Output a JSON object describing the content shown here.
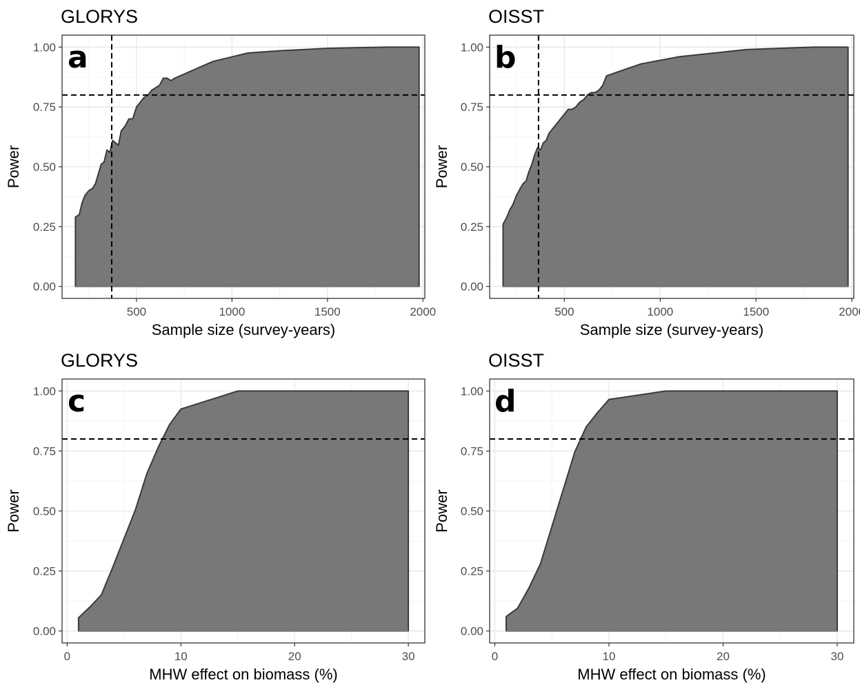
{
  "chart_data": [
    {
      "id": "a",
      "type": "area",
      "title": "GLORYS",
      "tag": "a",
      "xlabel": "Sample size (survey-years)",
      "ylabel": "Power",
      "xlim": [
        110,
        2010
      ],
      "ylim": [
        -0.05,
        1.05
      ],
      "xticks": [
        500,
        1000,
        1500,
        2000
      ],
      "xtick_labels": [
        "500",
        "1000",
        "1500",
        "2000"
      ],
      "yticks": [
        0,
        0.25,
        0.5,
        0.75,
        1
      ],
      "ytick_labels": [
        "0.00",
        "0.25",
        "0.50",
        "0.75",
        "1.00"
      ],
      "xminor": [
        250,
        750,
        1250,
        1750
      ],
      "hline": 0.8,
      "vline": 370,
      "grid": true,
      "x": [
        180,
        200,
        215,
        230,
        250,
        270,
        285,
        300,
        315,
        330,
        345,
        360,
        375,
        390,
        405,
        420,
        440,
        460,
        480,
        500,
        520,
        540,
        560,
        580,
        600,
        620,
        640,
        660,
        680,
        700,
        900,
        1080,
        1250,
        1500,
        1800,
        1980
      ],
      "y": [
        0.29,
        0.3,
        0.35,
        0.38,
        0.4,
        0.41,
        0.43,
        0.47,
        0.51,
        0.52,
        0.57,
        0.56,
        0.61,
        0.6,
        0.59,
        0.65,
        0.67,
        0.7,
        0.7,
        0.75,
        0.77,
        0.79,
        0.8,
        0.82,
        0.83,
        0.84,
        0.87,
        0.87,
        0.86,
        0.87,
        0.94,
        0.975,
        0.985,
        0.995,
        1.0,
        1.0
      ]
    },
    {
      "id": "b",
      "type": "area",
      "title": "OISST",
      "tag": "b",
      "xlabel": "Sample size (survey-years)",
      "ylabel": "Power",
      "xlim": [
        110,
        2010
      ],
      "ylim": [
        -0.05,
        1.05
      ],
      "xticks": [
        500,
        1000,
        1500,
        2000
      ],
      "xtick_labels": [
        "500",
        "1000",
        "1500",
        "2000"
      ],
      "yticks": [
        0,
        0.25,
        0.5,
        0.75,
        1
      ],
      "ytick_labels": [
        "0.00",
        "0.25",
        "0.50",
        "0.75",
        "1.00"
      ],
      "xminor": [
        250,
        750,
        1250,
        1750
      ],
      "hline": 0.8,
      "vline": 365,
      "grid": true,
      "x": [
        180,
        200,
        215,
        230,
        250,
        270,
        285,
        300,
        315,
        330,
        345,
        360,
        375,
        390,
        405,
        420,
        440,
        460,
        480,
        500,
        520,
        540,
        560,
        580,
        600,
        620,
        640,
        660,
        680,
        700,
        720,
        900,
        1100,
        1450,
        1800,
        1980
      ],
      "y": [
        0.26,
        0.29,
        0.32,
        0.34,
        0.38,
        0.41,
        0.43,
        0.44,
        0.48,
        0.51,
        0.55,
        0.58,
        0.57,
        0.6,
        0.61,
        0.64,
        0.66,
        0.68,
        0.7,
        0.72,
        0.74,
        0.74,
        0.75,
        0.77,
        0.78,
        0.8,
        0.81,
        0.81,
        0.82,
        0.84,
        0.88,
        0.93,
        0.96,
        0.99,
        1.0,
        1.0
      ]
    },
    {
      "id": "c",
      "type": "area",
      "title": "GLORYS",
      "tag": "c",
      "xlabel": "MHW effect on biomass (%)",
      "ylabel": "Power",
      "xlim": [
        -0.45,
        31.45
      ],
      "ylim": [
        -0.05,
        1.05
      ],
      "xticks": [
        0,
        10,
        20,
        30
      ],
      "xtick_labels": [
        "0",
        "10",
        "20",
        "30"
      ],
      "yticks": [
        0,
        0.25,
        0.5,
        0.75,
        1
      ],
      "ytick_labels": [
        "0.00",
        "0.25",
        "0.50",
        "0.75",
        "1.00"
      ],
      "xminor": [
        5,
        15,
        25
      ],
      "hline": 0.8,
      "vline": null,
      "grid": true,
      "x": [
        1,
        2,
        3,
        4,
        5,
        6,
        7,
        8,
        9,
        10,
        15,
        20,
        25,
        30
      ],
      "y": [
        0.055,
        0.1,
        0.15,
        0.265,
        0.385,
        0.505,
        0.655,
        0.765,
        0.86,
        0.925,
        1.0,
        1.0,
        1.0,
        1.0
      ]
    },
    {
      "id": "d",
      "type": "area",
      "title": "OISST",
      "tag": "d",
      "xlabel": "MHW effect on biomass (%)",
      "ylabel": "Power",
      "xlim": [
        -0.45,
        31.45
      ],
      "ylim": [
        -0.05,
        1.05
      ],
      "xticks": [
        0,
        10,
        20,
        30
      ],
      "xtick_labels": [
        "0",
        "10",
        "20",
        "30"
      ],
      "yticks": [
        0,
        0.25,
        0.5,
        0.75,
        1
      ],
      "ytick_labels": [
        "0.00",
        "0.25",
        "0.50",
        "0.75",
        "1.00"
      ],
      "xminor": [
        5,
        15,
        25
      ],
      "hline": 0.8,
      "vline": null,
      "grid": true,
      "x": [
        1,
        2,
        3,
        4,
        5,
        6,
        7,
        8,
        9,
        10,
        15,
        20,
        25,
        30
      ],
      "y": [
        0.06,
        0.095,
        0.18,
        0.28,
        0.435,
        0.59,
        0.745,
        0.85,
        0.91,
        0.965,
        1.0,
        1.0,
        1.0,
        1.0
      ]
    }
  ]
}
